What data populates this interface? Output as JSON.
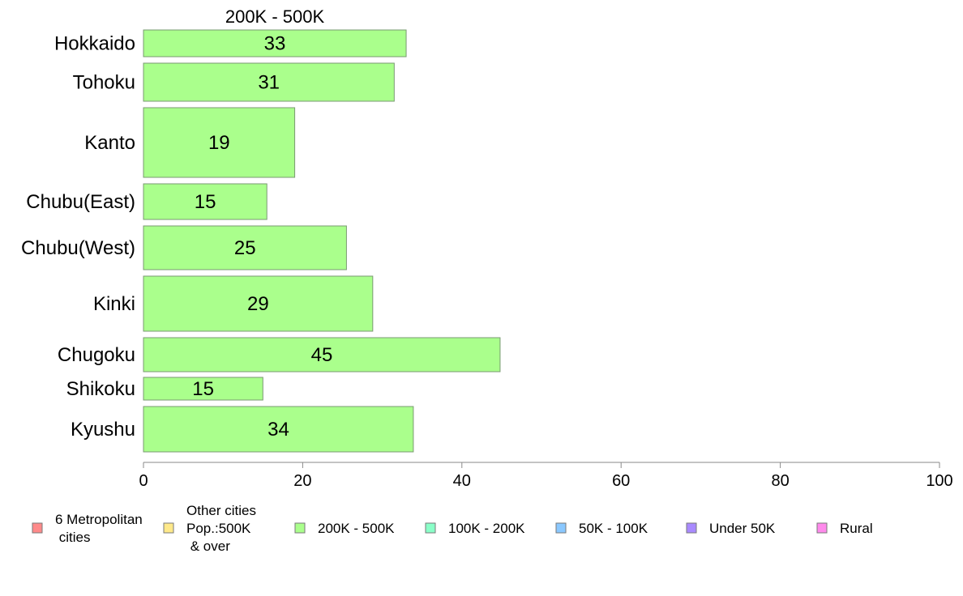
{
  "chart_data": {
    "type": "bar",
    "orientation": "horizontal",
    "title": "200K - 500K",
    "xlabel": "",
    "ylabel": "",
    "xlim": [
      0,
      100
    ],
    "xticks": [
      0,
      20,
      40,
      60,
      80,
      100
    ],
    "grid": false,
    "bar_color": "#aaff8c",
    "categories": [
      "Hokkaido",
      "Tohoku",
      "Kanto",
      "Chubu(East)",
      "Chubu(West)",
      "Kinki",
      "Chugoku",
      "Shikoku",
      "Kyushu"
    ],
    "values": [
      33,
      31.5,
      19,
      15.5,
      25.5,
      28.8,
      44.8,
      15,
      33.9
    ],
    "value_labels": [
      "33",
      "31",
      "19",
      "15",
      "25",
      "29",
      "45",
      "15",
      "34"
    ],
    "legend_placement": "bottom",
    "legend": [
      {
        "label_lines": [
          "6 Metropolitan",
          " cities"
        ],
        "color": "#ff8a8a"
      },
      {
        "label_lines": [
          "Other cities",
          "Pop.:500K",
          " & over"
        ],
        "color": "#ffe98a"
      },
      {
        "label_lines": [
          "200K - 500K"
        ],
        "color": "#aaff8c"
      },
      {
        "label_lines": [
          "100K - 200K"
        ],
        "color": "#8affc8"
      },
      {
        "label_lines": [
          "50K - 100K"
        ],
        "color": "#8ac8ff"
      },
      {
        "label_lines": [
          "Under 50K"
        ],
        "color": "#a98aff"
      },
      {
        "label_lines": [
          "Rural"
        ],
        "color": "#ff8aec"
      }
    ]
  }
}
